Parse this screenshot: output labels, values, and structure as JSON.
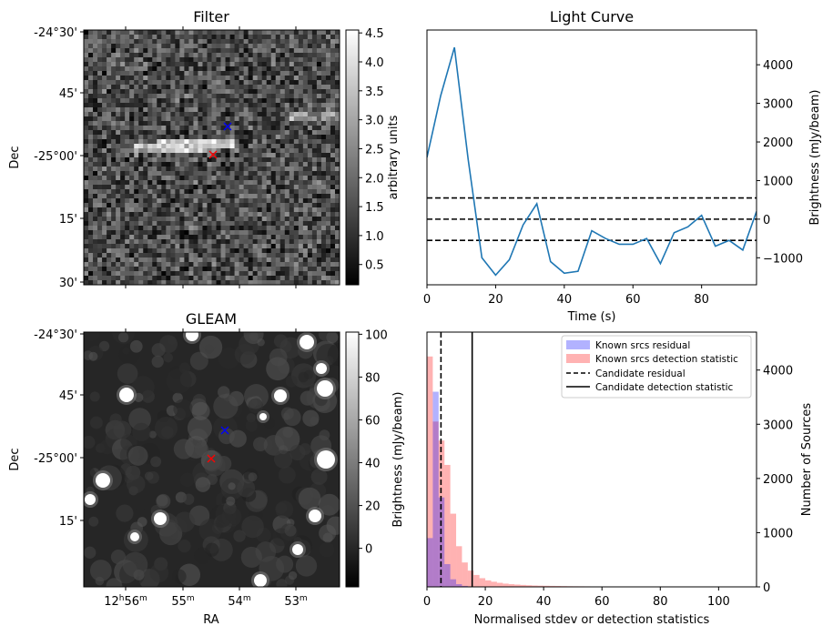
{
  "chart_data": [
    {
      "type": "heatmap",
      "title": "Filter",
      "ylabel": "Dec",
      "y_ticks": [
        "-24°30'",
        "45'",
        "-25°00'",
        "15'",
        "30'"
      ],
      "colorbar": {
        "label": "arbitrary units",
        "range": [
          0.15,
          4.55
        ],
        "ticks": [
          "0.5",
          "1.0",
          "1.5",
          "2.0",
          "2.5",
          "3.0",
          "3.5",
          "4.0",
          "4.5"
        ],
        "tick_values": [
          0.5,
          1.0,
          1.5,
          2.0,
          2.5,
          3.0,
          3.5,
          4.0,
          4.5
        ]
      },
      "markers": [
        {
          "symbol": "x",
          "color": "#ff0000"
        },
        {
          "symbol": "x",
          "color": "#0000ff"
        }
      ]
    },
    {
      "type": "line",
      "title": "Light Curve",
      "xlabel": "Time (s)",
      "ylabel": "Brightness (mJy/beam)",
      "xlim": [
        0,
        96
      ],
      "ylim": [
        -1700,
        4900
      ],
      "x_ticks": [
        0,
        20,
        40,
        60,
        80
      ],
      "y_ticks": [
        -1000,
        0,
        1000,
        2000,
        3000,
        4000
      ],
      "color": "#1f77b4",
      "x": [
        0,
        4,
        8,
        12,
        16,
        20,
        24,
        28,
        32,
        36,
        40,
        44,
        48,
        52,
        56,
        60,
        64,
        68,
        72,
        76,
        80,
        84,
        88,
        92,
        96
      ],
      "y": [
        1600,
        3200,
        4450,
        1550,
        -1000,
        -1450,
        -1050,
        -150,
        400,
        -1100,
        -1400,
        -1350,
        -300,
        -500,
        -650,
        -650,
        -500,
        -1150,
        -350,
        -200,
        100,
        -700,
        -550,
        -800,
        200
      ],
      "hlines": [
        {
          "y": 550,
          "style": "dashed",
          "color": "#000000"
        },
        {
          "y": 0,
          "style": "dashed",
          "color": "#000000"
        },
        {
          "y": -550,
          "style": "dashed",
          "color": "#000000"
        }
      ]
    },
    {
      "type": "heatmap",
      "title": "GLEAM",
      "xlabel": "RA",
      "ylabel": "Dec",
      "x_ticks": [
        "12h56m",
        "55m",
        "54m",
        "53m"
      ],
      "y_ticks": [
        "-24°30'",
        "45'",
        "-25°00'",
        "15'"
      ],
      "colorbar": {
        "label": "Brightness (mJy/beam)",
        "range": [
          -18,
          101
        ],
        "ticks": [
          "0",
          "20",
          "40",
          "60",
          "80",
          "100"
        ],
        "tick_values": [
          0,
          20,
          40,
          60,
          80,
          100
        ]
      },
      "markers": [
        {
          "symbol": "x",
          "color": "#ff0000"
        },
        {
          "symbol": "x",
          "color": "#0000ff"
        }
      ]
    },
    {
      "type": "histogram",
      "xlabel": "Normalised stdev or detection statistics",
      "ylabel": "Number of Sources",
      "xlim": [
        0,
        113
      ],
      "ylim": [
        0,
        4700
      ],
      "x_ticks": [
        0,
        20,
        40,
        60,
        80,
        100
      ],
      "y_ticks": [
        0,
        1000,
        2000,
        3000,
        4000
      ],
      "bin_width": 2,
      "legend_position": "top-right",
      "series": [
        {
          "name": "Known srcs residual",
          "color": "#0000ff",
          "alpha": 0.3,
          "bin_start": 0,
          "counts": [
            900,
            3600,
            1650,
            420,
            140,
            50,
            18,
            6,
            2
          ]
        },
        {
          "name": "Known srcs detection statistic",
          "color": "#ff0000",
          "alpha": 0.3,
          "bin_start": 0,
          "counts": [
            4250,
            3050,
            2700,
            2250,
            1350,
            750,
            450,
            300,
            220,
            160,
            120,
            95,
            75,
            60,
            50,
            42,
            36,
            30,
            25,
            22,
            20,
            18,
            16,
            14,
            12,
            11,
            10,
            9,
            8,
            8,
            7,
            7,
            6,
            6,
            5,
            5,
            5,
            4,
            4,
            4,
            4,
            3,
            3,
            3,
            3,
            3,
            3,
            2,
            2,
            2,
            2,
            2,
            2,
            2,
            2,
            2
          ]
        }
      ],
      "vlines": [
        {
          "name": "Candidate residual",
          "x": 4.8,
          "style": "dashed",
          "color": "#000000"
        },
        {
          "name": "Candidate detection statistic",
          "x": 15.5,
          "style": "solid",
          "color": "#000000"
        }
      ]
    }
  ]
}
